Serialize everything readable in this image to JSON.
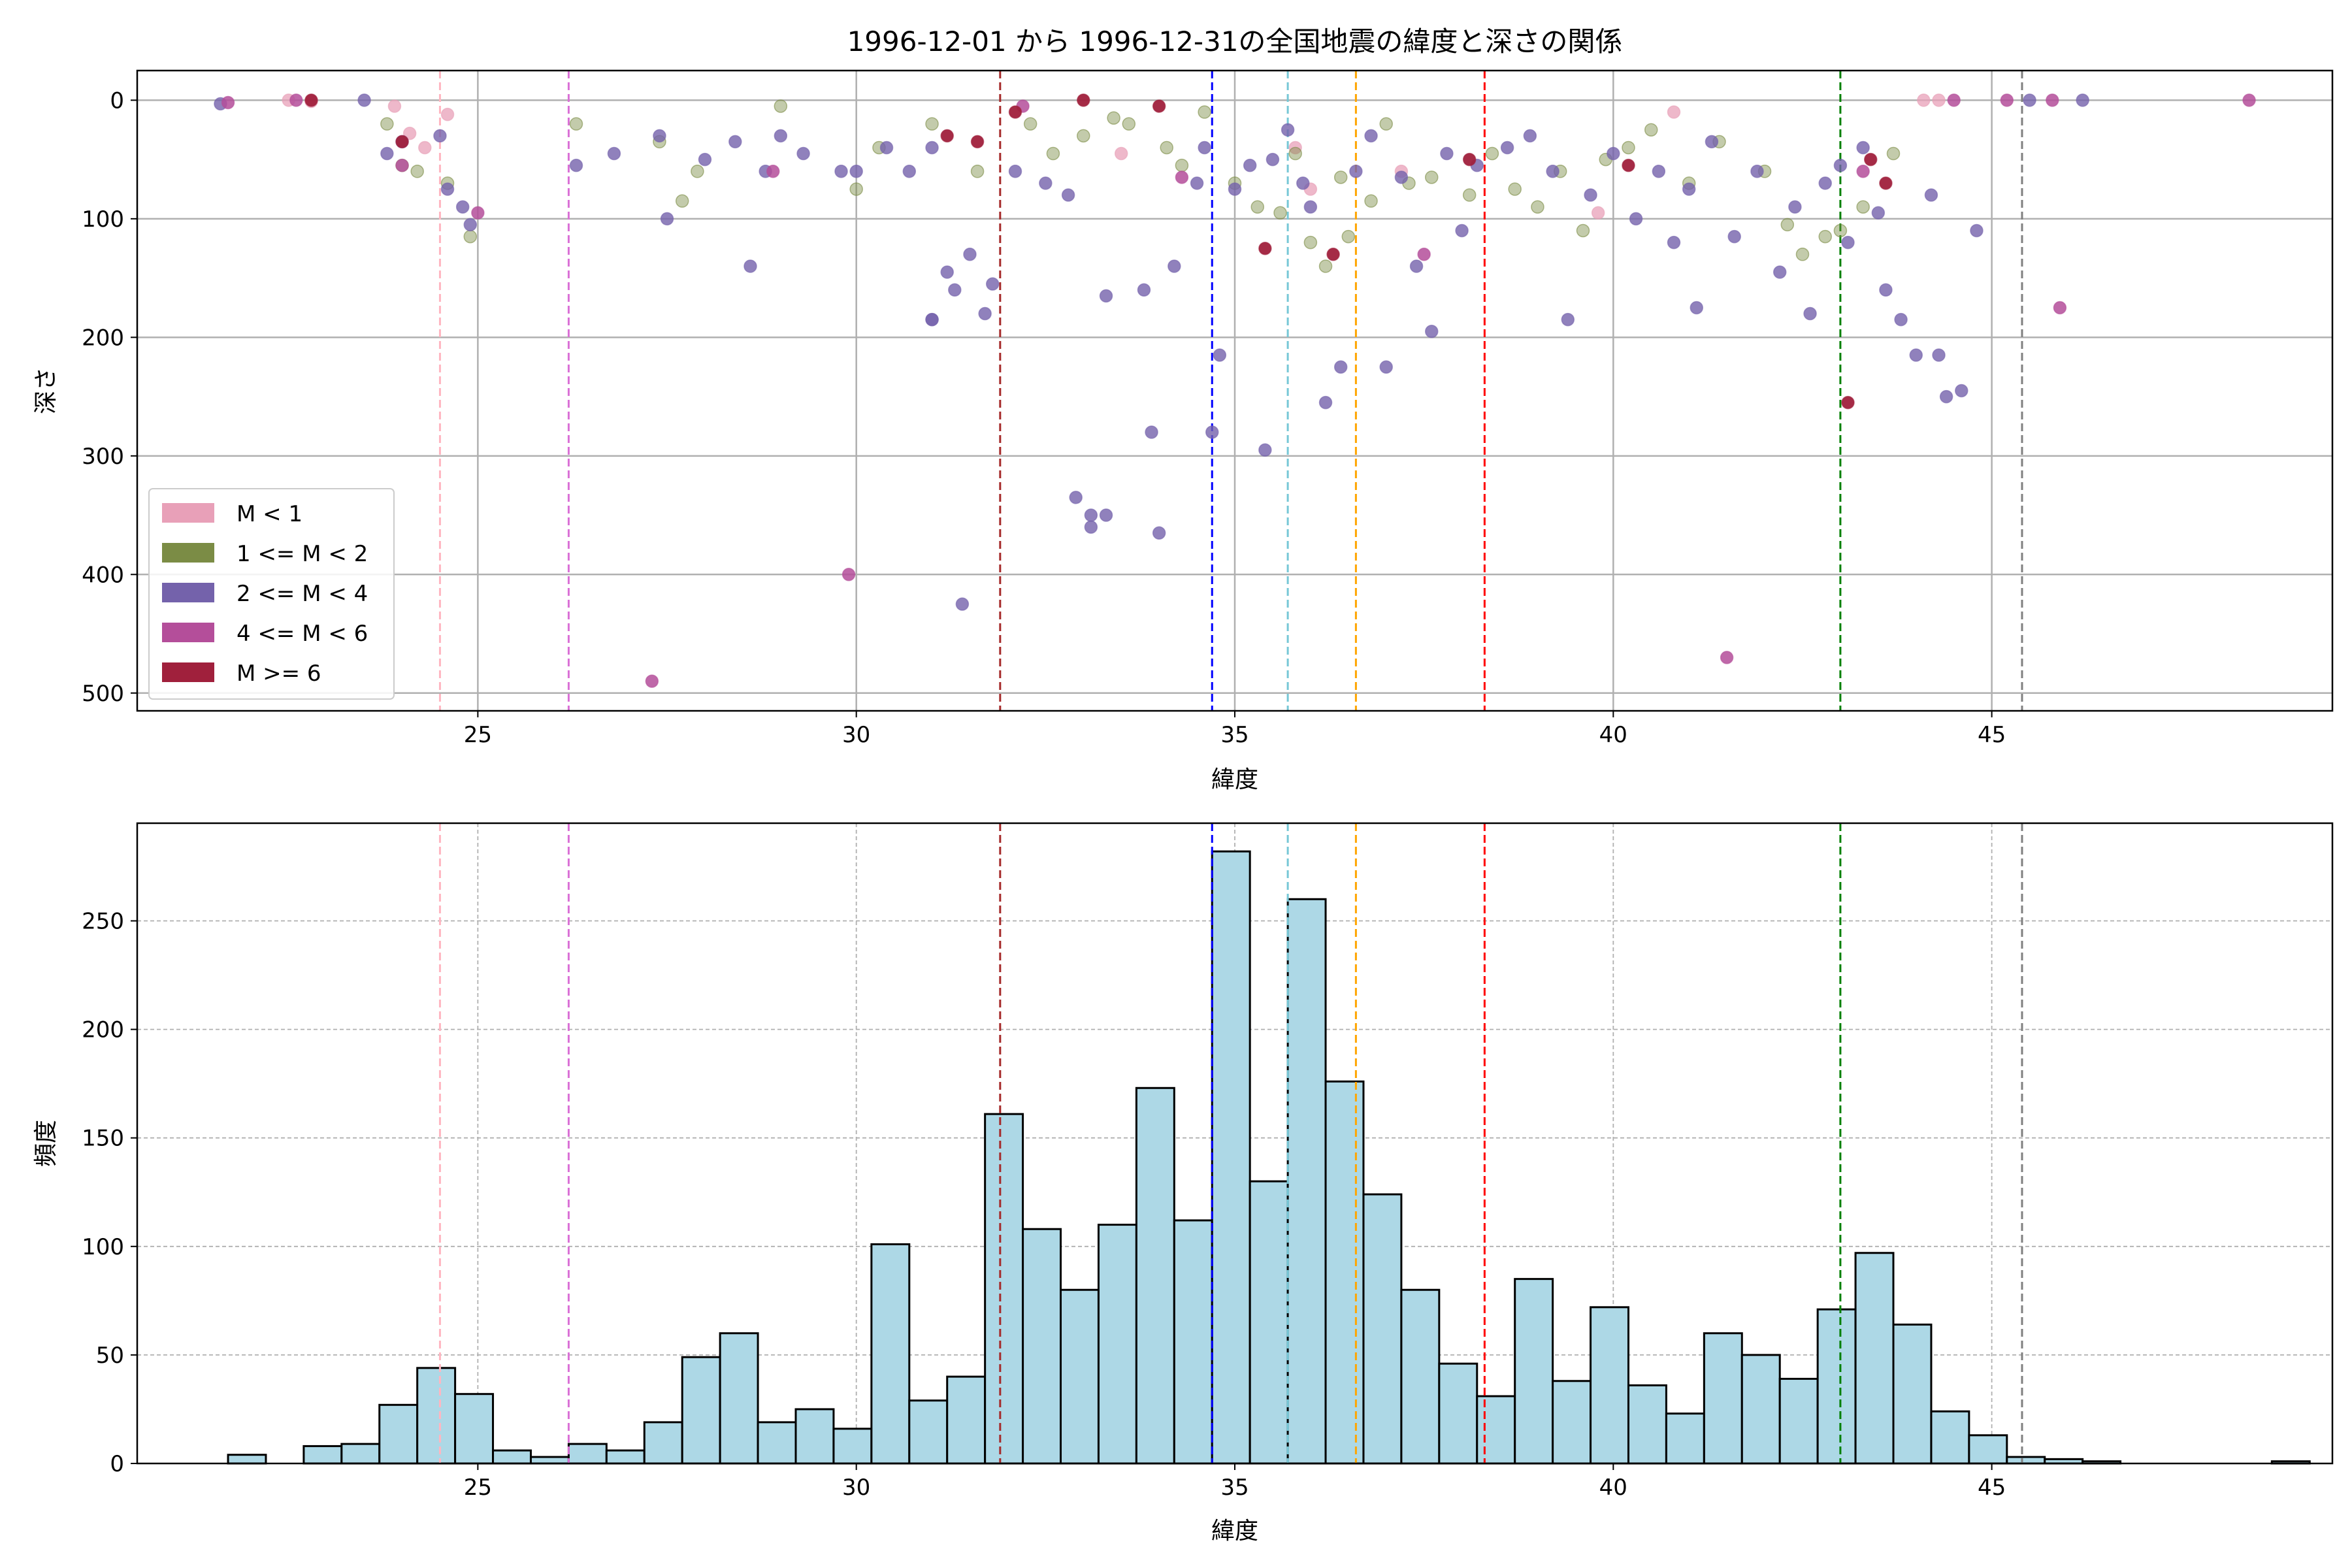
{
  "chart_data": [
    {
      "type": "scatter",
      "title": "1996-12-01 から 1996-12-31の全国地震の緯度と深さの関係",
      "xlabel": "緯度",
      "ylabel": "深さ",
      "xlim": [
        20.5,
        49.5
      ],
      "ylim": [
        515,
        -25
      ],
      "y_inverted": true,
      "xticks": [
        25,
        30,
        35,
        40,
        45
      ],
      "yticks": [
        0,
        100,
        200,
        300,
        400,
        500
      ],
      "grid": true,
      "legend_position": "lower-left",
      "categories": [
        {
          "label": "M < 1",
          "color": "#e8a0b8"
        },
        {
          "label": "1 <= M < 2",
          "color": "#7b8c45"
        },
        {
          "label": "2 <= M < 4",
          "color": "#7462ab"
        },
        {
          "label": "4 <= M < 6",
          "color": "#b44e9a"
        },
        {
          "label": "M >= 6",
          "color": "#a0203c"
        }
      ],
      "vlines": [
        {
          "x": 24.5,
          "color": "#ffb6c1"
        },
        {
          "x": 26.2,
          "color": "#da70d6"
        },
        {
          "x": 31.9,
          "color": "#a52a2a"
        },
        {
          "x": 34.7,
          "color": "#0000ff"
        },
        {
          "x": 35.7,
          "color": "#76c7d6"
        },
        {
          "x": 36.6,
          "color": "#ffa500"
        },
        {
          "x": 38.3,
          "color": "#ff0000"
        },
        {
          "x": 43.0,
          "color": "#008000"
        },
        {
          "x": 45.4,
          "color": "#808080"
        }
      ],
      "points": {
        "m_lt_1": [
          [
            22.5,
            0
          ],
          [
            22.8,
            1
          ],
          [
            23.9,
            5
          ],
          [
            24.1,
            28
          ],
          [
            24.3,
            40
          ],
          [
            24.6,
            12
          ],
          [
            33.5,
            45
          ],
          [
            35.8,
            40
          ],
          [
            36.0,
            75
          ],
          [
            37.2,
            60
          ],
          [
            39.8,
            95
          ],
          [
            40.8,
            10
          ],
          [
            44.1,
            0
          ],
          [
            44.3,
            0
          ]
        ],
        "m_1_2": [
          [
            23.8,
            20
          ],
          [
            24.0,
            55
          ],
          [
            24.2,
            60
          ],
          [
            24.6,
            70
          ],
          [
            24.9,
            115
          ],
          [
            26.3,
            20
          ],
          [
            27.4,
            35
          ],
          [
            27.7,
            85
          ],
          [
            27.9,
            60
          ],
          [
            29.0,
            5
          ],
          [
            30.0,
            75
          ],
          [
            30.3,
            40
          ],
          [
            31.0,
            20
          ],
          [
            31.6,
            60
          ],
          [
            32.3,
            20
          ],
          [
            32.6,
            45
          ],
          [
            33.0,
            30
          ],
          [
            33.4,
            15
          ],
          [
            33.6,
            20
          ],
          [
            34.1,
            40
          ],
          [
            34.3,
            55
          ],
          [
            34.6,
            10
          ],
          [
            35.0,
            70
          ],
          [
            35.3,
            90
          ],
          [
            35.6,
            95
          ],
          [
            35.8,
            45
          ],
          [
            36.0,
            120
          ],
          [
            36.2,
            140
          ],
          [
            36.4,
            65
          ],
          [
            36.5,
            115
          ],
          [
            36.8,
            85
          ],
          [
            37.0,
            20
          ],
          [
            37.3,
            70
          ],
          [
            37.6,
            65
          ],
          [
            38.1,
            80
          ],
          [
            38.4,
            45
          ],
          [
            38.7,
            75
          ],
          [
            39.0,
            90
          ],
          [
            39.3,
            60
          ],
          [
            39.6,
            110
          ],
          [
            39.9,
            50
          ],
          [
            40.2,
            40
          ],
          [
            40.5,
            25
          ],
          [
            41.0,
            70
          ],
          [
            41.4,
            35
          ],
          [
            42.0,
            60
          ],
          [
            42.3,
            105
          ],
          [
            42.5,
            130
          ],
          [
            42.8,
            115
          ],
          [
            43.0,
            110
          ],
          [
            43.3,
            90
          ],
          [
            43.7,
            45
          ]
        ],
        "m_2_4": [
          [
            21.6,
            3
          ],
          [
            23.5,
            0
          ],
          [
            23.8,
            45
          ],
          [
            24.0,
            35
          ],
          [
            24.5,
            30
          ],
          [
            24.6,
            75
          ],
          [
            24.8,
            90
          ],
          [
            24.9,
            105
          ],
          [
            26.3,
            55
          ],
          [
            26.8,
            45
          ],
          [
            27.4,
            30
          ],
          [
            27.5,
            100
          ],
          [
            28.0,
            50
          ],
          [
            28.4,
            35
          ],
          [
            28.6,
            140
          ],
          [
            28.8,
            60
          ],
          [
            29.0,
            30
          ],
          [
            29.3,
            45
          ],
          [
            29.8,
            60
          ],
          [
            30.0,
            60
          ],
          [
            30.4,
            40
          ],
          [
            30.7,
            60
          ],
          [
            31.0,
            40
          ],
          [
            31.0,
            185
          ],
          [
            31.2,
            145
          ],
          [
            31.3,
            160
          ],
          [
            31.5,
            130
          ],
          [
            31.7,
            180
          ],
          [
            31.8,
            155
          ],
          [
            32.1,
            60
          ],
          [
            32.5,
            70
          ],
          [
            32.8,
            80
          ],
          [
            32.9,
            335
          ],
          [
            33.1,
            350
          ],
          [
            33.1,
            360
          ],
          [
            33.3,
            350
          ],
          [
            33.3,
            165
          ],
          [
            33.8,
            160
          ],
          [
            33.9,
            280
          ],
          [
            34.0,
            365
          ],
          [
            34.2,
            140
          ],
          [
            34.5,
            70
          ],
          [
            34.6,
            40
          ],
          [
            34.7,
            280
          ],
          [
            34.8,
            215
          ],
          [
            35.0,
            75
          ],
          [
            35.2,
            55
          ],
          [
            35.4,
            295
          ],
          [
            35.5,
            50
          ],
          [
            35.7,
            25
          ],
          [
            35.9,
            70
          ],
          [
            36.0,
            90
          ],
          [
            36.2,
            255
          ],
          [
            36.4,
            225
          ],
          [
            36.6,
            60
          ],
          [
            36.8,
            30
          ],
          [
            37.0,
            225
          ],
          [
            37.2,
            65
          ],
          [
            37.4,
            140
          ],
          [
            37.6,
            195
          ],
          [
            37.8,
            45
          ],
          [
            38.0,
            110
          ],
          [
            38.2,
            55
          ],
          [
            38.6,
            40
          ],
          [
            38.9,
            30
          ],
          [
            39.2,
            60
          ],
          [
            39.4,
            185
          ],
          [
            39.7,
            80
          ],
          [
            40.0,
            45
          ],
          [
            40.3,
            100
          ],
          [
            40.6,
            60
          ],
          [
            40.8,
            120
          ],
          [
            41.0,
            75
          ],
          [
            41.3,
            35
          ],
          [
            41.6,
            115
          ],
          [
            41.9,
            60
          ],
          [
            42.2,
            145
          ],
          [
            42.4,
            90
          ],
          [
            42.6,
            180
          ],
          [
            42.8,
            70
          ],
          [
            43.0,
            55
          ],
          [
            43.1,
            120
          ],
          [
            43.3,
            40
          ],
          [
            43.5,
            95
          ],
          [
            43.6,
            160
          ],
          [
            43.8,
            185
          ],
          [
            44.0,
            215
          ],
          [
            44.2,
            80
          ],
          [
            44.3,
            215
          ],
          [
            44.4,
            250
          ],
          [
            44.6,
            245
          ],
          [
            44.8,
            110
          ],
          [
            45.5,
            0
          ],
          [
            46.2,
            0
          ],
          [
            41.1,
            175
          ],
          [
            31.4,
            425
          ],
          [
            31.0,
            185
          ]
        ],
        "m_4_6": [
          [
            21.7,
            2
          ],
          [
            22.6,
            0
          ],
          [
            24.0,
            55
          ],
          [
            25.0,
            95
          ],
          [
            28.9,
            60
          ],
          [
            29.9,
            400
          ],
          [
            32.2,
            5
          ],
          [
            34.3,
            65
          ],
          [
            37.5,
            130
          ],
          [
            41.5,
            470
          ],
          [
            27.3,
            490
          ],
          [
            43.3,
            60
          ],
          [
            44.5,
            0
          ],
          [
            45.2,
            0
          ],
          [
            45.8,
            0
          ],
          [
            45.9,
            175
          ],
          [
            48.4,
            0
          ]
        ],
        "m_ge_6": [
          [
            22.8,
            0
          ],
          [
            24.0,
            35
          ],
          [
            31.2,
            30
          ],
          [
            31.6,
            35
          ],
          [
            32.1,
            10
          ],
          [
            33.0,
            0
          ],
          [
            34.0,
            5
          ],
          [
            35.4,
            125
          ],
          [
            36.3,
            130
          ],
          [
            38.1,
            50
          ],
          [
            40.2,
            55
          ],
          [
            43.1,
            255
          ],
          [
            43.4,
            50
          ],
          [
            43.6,
            70
          ]
        ]
      }
    },
    {
      "type": "bar",
      "subtype": "histogram",
      "xlabel": "緯度",
      "ylabel": "頻度",
      "xlim": [
        20.5,
        49.5
      ],
      "ylim": [
        0,
        295
      ],
      "xticks": [
        25,
        30,
        35,
        40,
        45
      ],
      "yticks": [
        0,
        50,
        100,
        150,
        200,
        250
      ],
      "grid": true,
      "bar_color": "#add8e6",
      "edge_color": "#000000",
      "bin_start": 21.7,
      "bin_width": 0.5,
      "values": [
        4,
        0,
        8,
        9,
        27,
        44,
        32,
        6,
        3,
        9,
        6,
        19,
        49,
        60,
        19,
        25,
        16,
        101,
        29,
        40,
        161,
        108,
        80,
        110,
        173,
        112,
        282,
        130,
        260,
        176,
        124,
        80,
        46,
        31,
        85,
        38,
        72,
        36,
        23,
        60,
        50,
        39,
        71,
        97,
        64,
        24,
        13,
        3,
        2,
        1,
        0,
        0,
        0,
        0,
        1
      ],
      "vlines": [
        {
          "x": 24.5,
          "color": "#ffb6c1"
        },
        {
          "x": 26.2,
          "color": "#da70d6"
        },
        {
          "x": 31.9,
          "color": "#a52a2a"
        },
        {
          "x": 34.7,
          "color": "#0000ff"
        },
        {
          "x": 35.7,
          "color": "#76c7d6"
        },
        {
          "x": 36.6,
          "color": "#ffa500"
        },
        {
          "x": 38.3,
          "color": "#ff0000"
        },
        {
          "x": 43.0,
          "color": "#008000"
        },
        {
          "x": 45.4,
          "color": "#808080"
        }
      ]
    }
  ]
}
